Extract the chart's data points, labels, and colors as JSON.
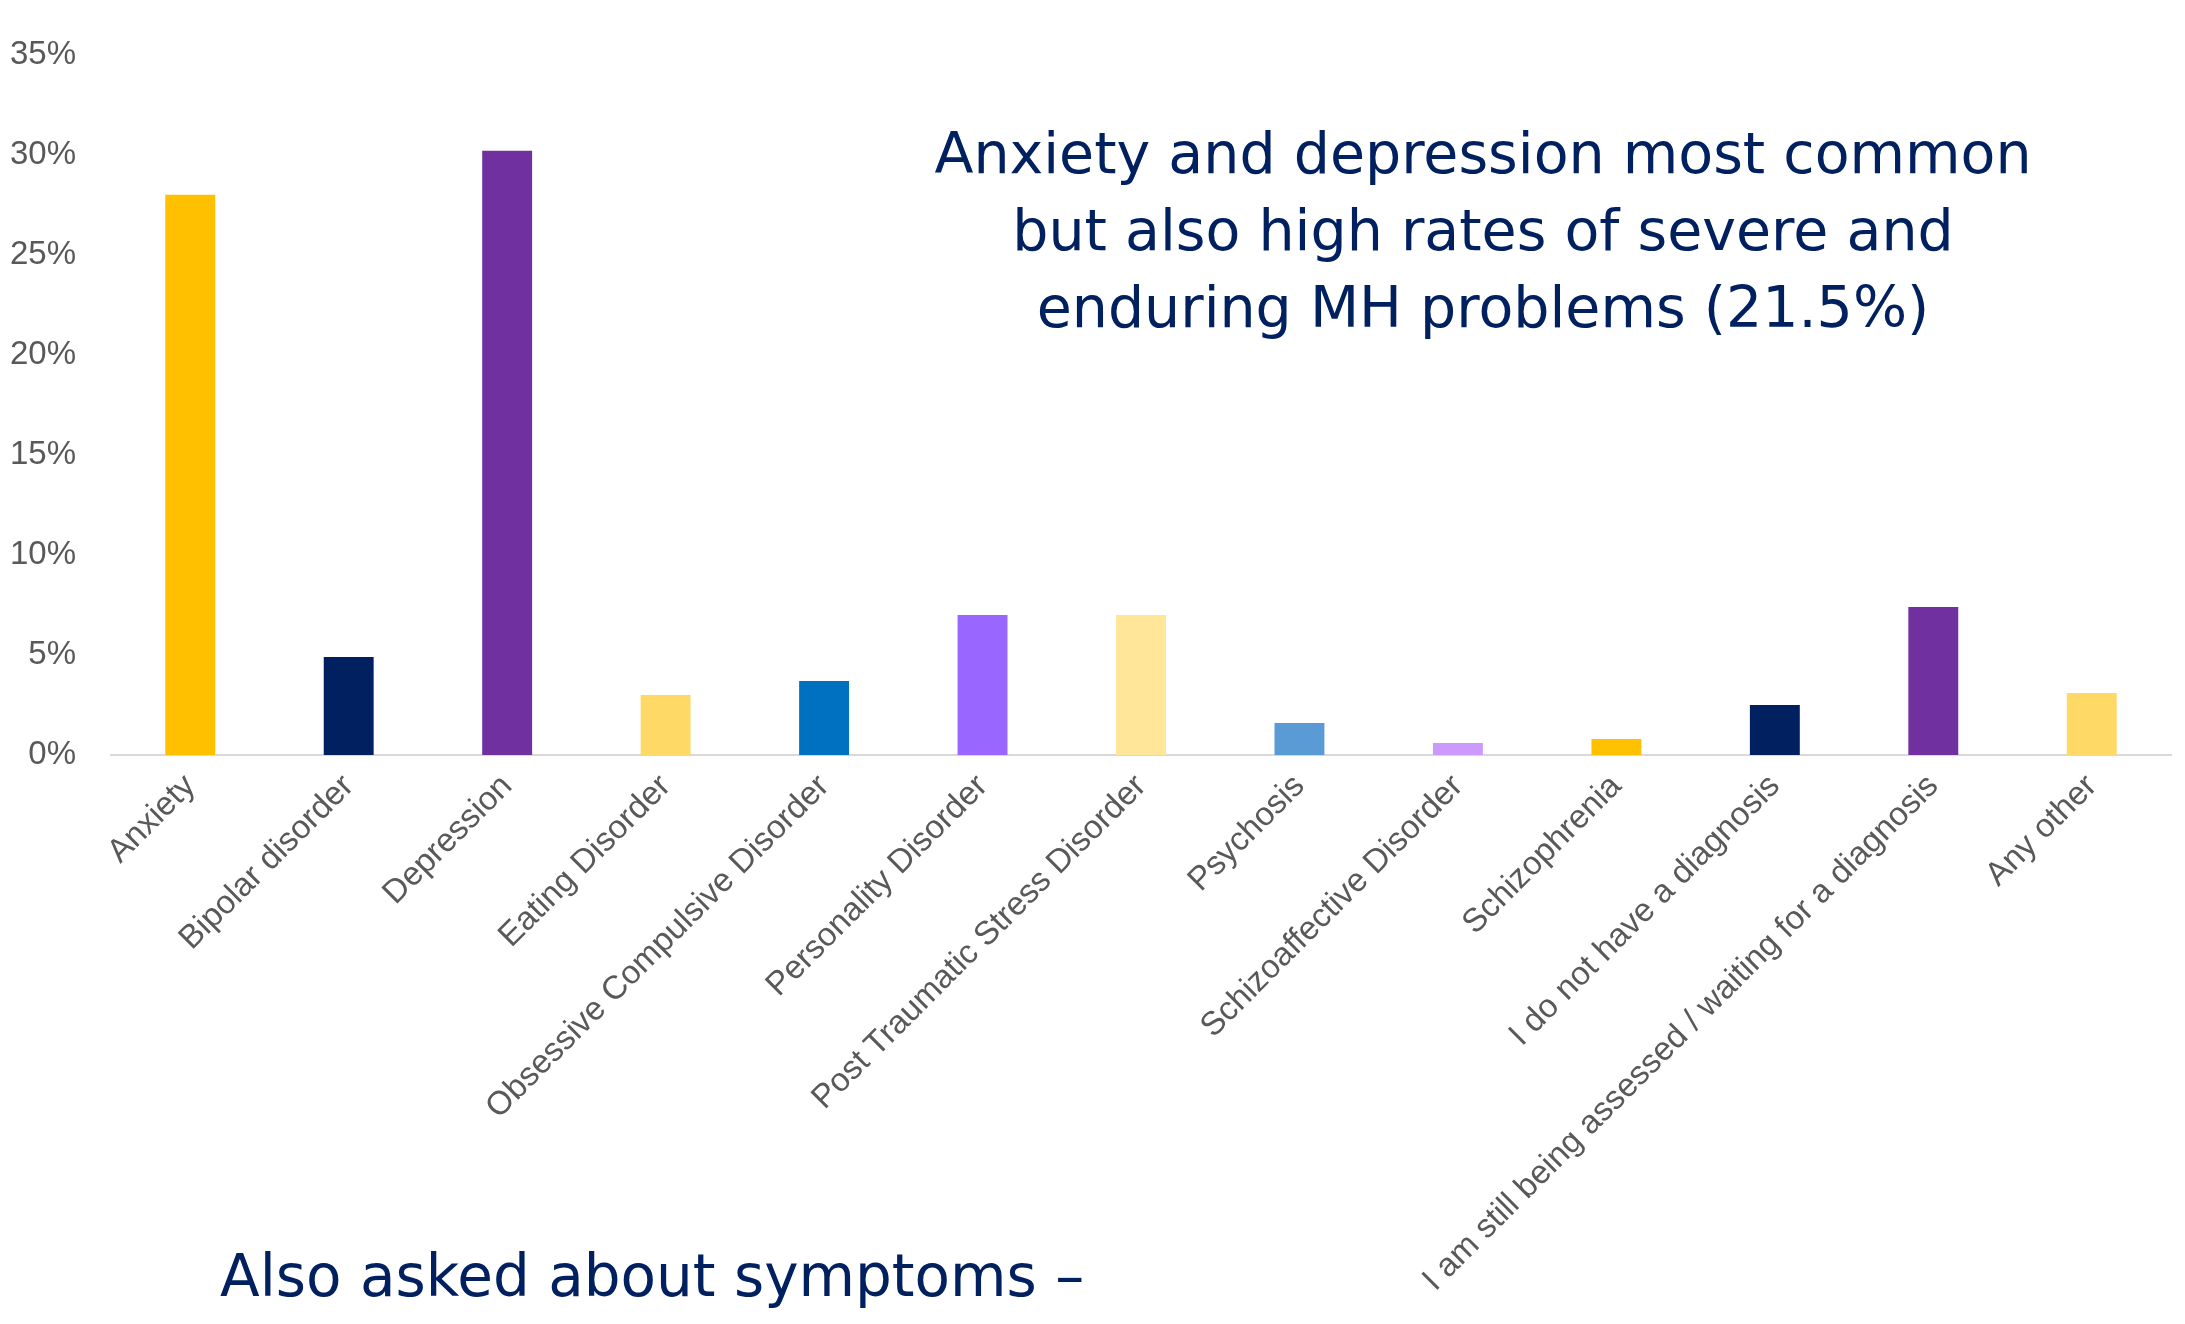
{
  "chart_data": {
    "type": "bar",
    "categories": [
      "Anxiety",
      "Bipolar disorder",
      "Depression",
      "Eating Disorder",
      "Obsessive Compulsive Disorder",
      "Personality Disorder",
      "Post Traumatic Stress Disorder",
      "Psychosis",
      "Schizoaffective Disorder",
      "Schizophrenia",
      "I do not have a diagnosis",
      "I am still being assessed / waiting for a diagnosis",
      "Any other"
    ],
    "values": [
      28.0,
      4.9,
      30.2,
      3.0,
      3.7,
      7.0,
      7.0,
      1.6,
      0.6,
      0.8,
      2.5,
      7.4,
      3.1
    ],
    "colors": [
      "#ffc000",
      "#002060",
      "#7030a0",
      "#ffd966",
      "#0070c0",
      "#9966ff",
      "#ffe699",
      "#5b9bd5",
      "#cc99ff",
      "#ffc000",
      "#002060",
      "#7030a0",
      "#ffd966"
    ],
    "ylim": [
      0,
      35
    ],
    "yticks": [
      {
        "value": 0,
        "label": "0%"
      },
      {
        "value": 5,
        "label": "5%"
      },
      {
        "value": 10,
        "label": "10%"
      },
      {
        "value": 15,
        "label": "15%"
      },
      {
        "value": 20,
        "label": "20%"
      },
      {
        "value": 25,
        "label": "25%"
      },
      {
        "value": 30,
        "label": "30%"
      },
      {
        "value": 35,
        "label": "35%"
      }
    ],
    "annotations": [
      "Anxiety and depression most common but also high rates of severe and enduring MH problems (21.5%)",
      "Also asked about symptoms –"
    ]
  }
}
